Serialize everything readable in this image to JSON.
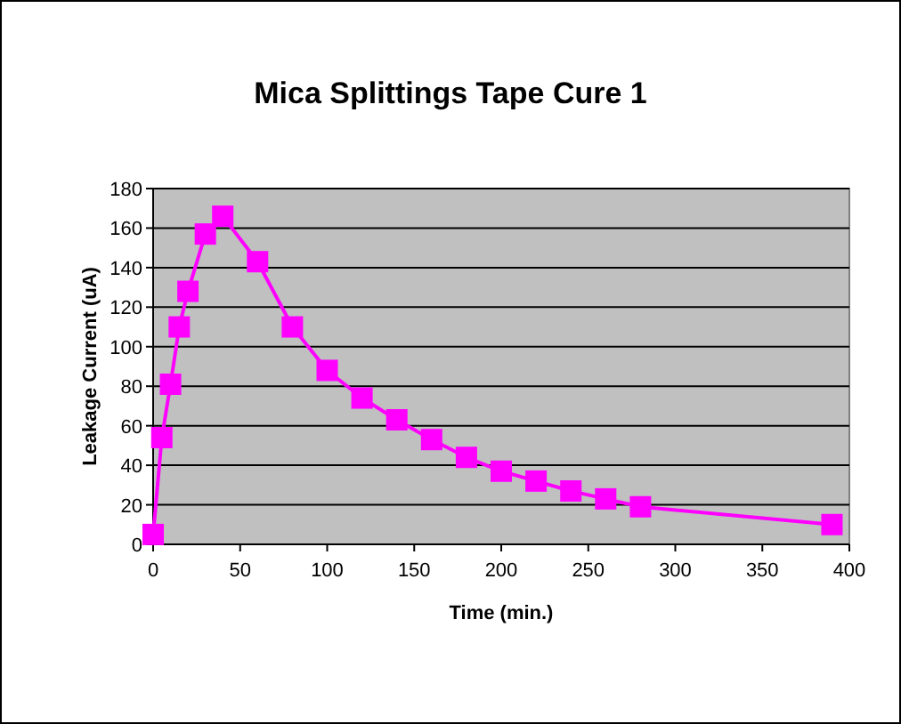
{
  "chart_data": {
    "type": "line",
    "title": "Mica Splittings Tape Cure 1",
    "xlabel": "Time (min.)",
    "ylabel": "Leakage Current (uA)",
    "x": [
      0,
      5,
      10,
      15,
      20,
      30,
      40,
      60,
      80,
      100,
      120,
      140,
      160,
      180,
      200,
      220,
      240,
      260,
      280,
      390
    ],
    "series": [
      {
        "color": "#ff00ff",
        "values": [
          5,
          54,
          81,
          110,
          128,
          157,
          166,
          143,
          110,
          88,
          74,
          63,
          53,
          44,
          37,
          32,
          27,
          23,
          19,
          10
        ]
      }
    ],
    "xlim": [
      0,
      400
    ],
    "xticks": [
      0,
      50,
      100,
      150,
      200,
      250,
      300,
      350,
      400
    ],
    "ylim": [
      0,
      180
    ],
    "yticks": [
      0,
      20,
      40,
      60,
      80,
      100,
      120,
      140,
      160,
      180
    ],
    "grid": "y",
    "marker": "square",
    "line_style": "solid"
  }
}
